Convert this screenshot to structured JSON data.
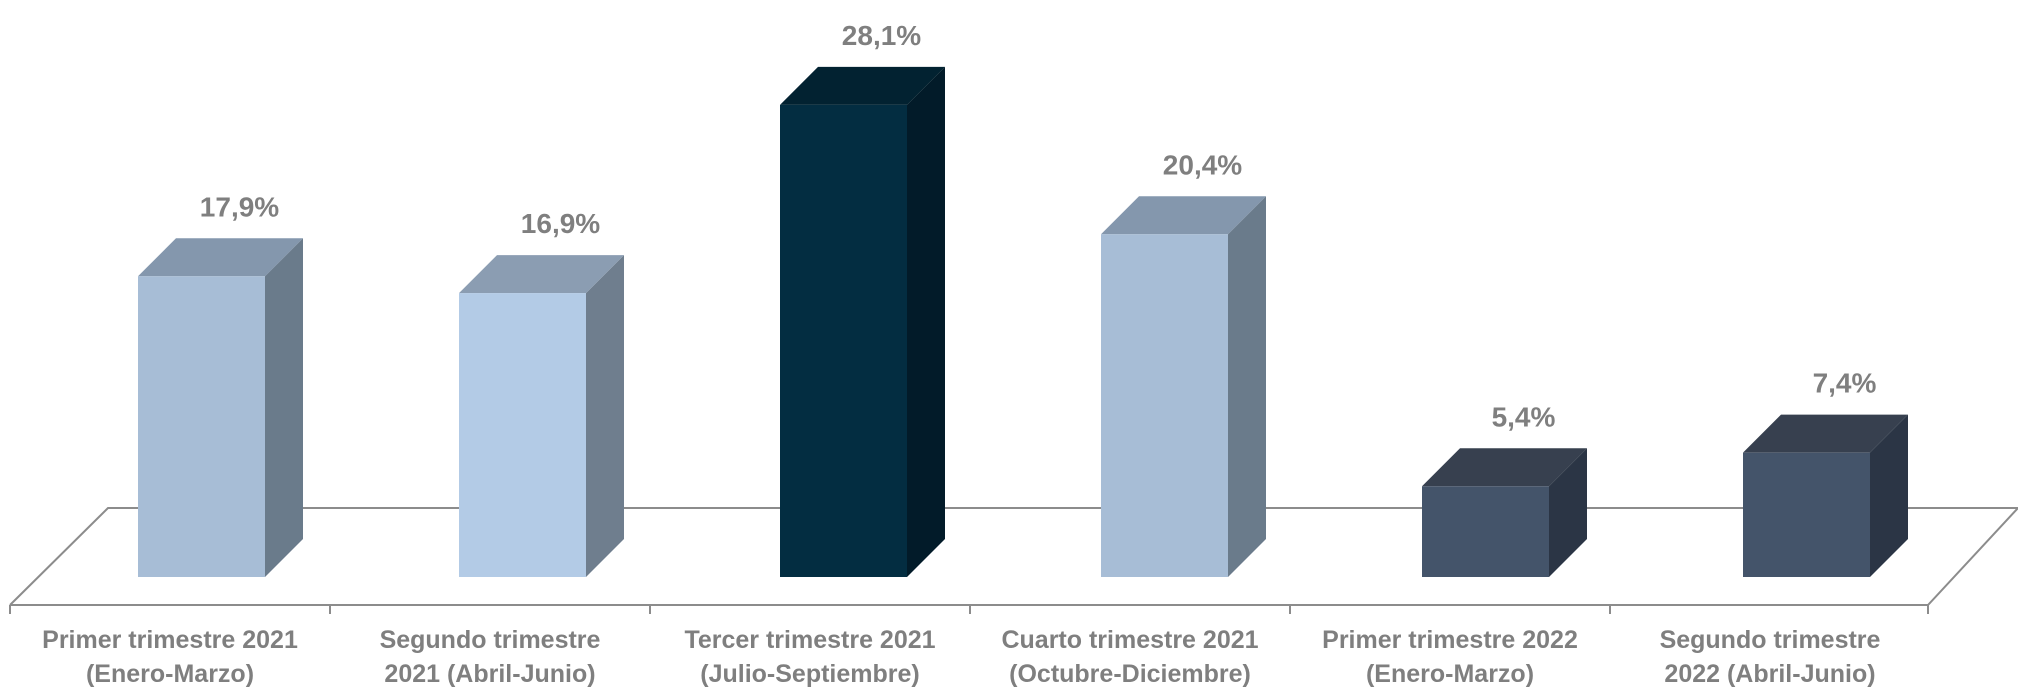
{
  "chart_data": {
    "type": "bar",
    "title": "",
    "xlabel": "",
    "ylabel": "",
    "ylim": [
      0,
      30
    ],
    "grid": false,
    "legend": "none",
    "categories": [
      [
        "Primer trimestre 2021",
        "(Enero-Marzo)"
      ],
      [
        "Segundo trimestre",
        "2021 (Abril-Junio)"
      ],
      [
        "Tercer trimestre 2021",
        "(Julio-Septiembre)"
      ],
      [
        "Cuarto trimestre 2021",
        "(Octubre-Diciembre)"
      ],
      [
        "Primer trimestre 2022",
        "(Enero-Marzo)"
      ],
      [
        "Segundo trimestre",
        "2022 (Abril-Junio)"
      ]
    ],
    "values": [
      17.9,
      16.9,
      28.1,
      20.4,
      5.4,
      7.4
    ],
    "data_labels": [
      "17,9%",
      "16,9%",
      "28,1%",
      "20,4%",
      "5,4%",
      "7,4%"
    ],
    "colors": [
      {
        "front": "#a7bdd6",
        "side": "#6a7b8b",
        "top": "#8497ad"
      },
      {
        "front": "#b3cbe6",
        "side": "#6f7e8e",
        "top": "#8b9db2"
      },
      {
        "front": "#032d41",
        "side": "#021b29",
        "top": "#022231"
      },
      {
        "front": "#a7bdd6",
        "side": "#6a7b8b",
        "top": "#8497ad"
      },
      {
        "front": "#44546a",
        "side": "#2b3545",
        "top": "#37404f"
      },
      {
        "front": "#44546a",
        "side": "#2b3545",
        "top": "#37404f"
      }
    ]
  }
}
